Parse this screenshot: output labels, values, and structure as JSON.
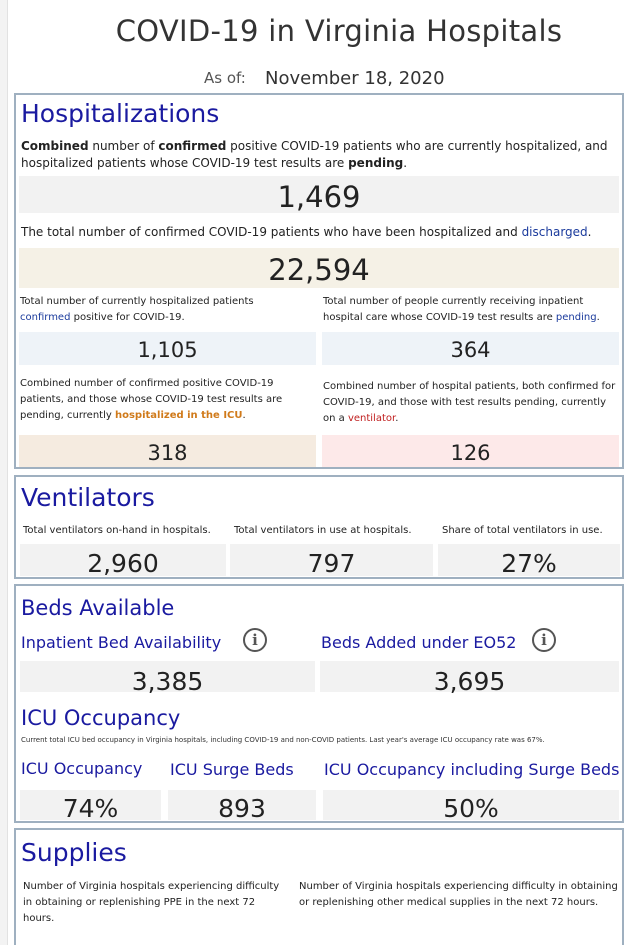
{
  "header": {
    "title": "COVID-19 in Virginia Hospitals",
    "as_of_label": "As of:",
    "as_of_date": "November 18, 2020"
  },
  "hospitalizations": {
    "title": "Hospitalizations",
    "total_desc": {
      "p1": "Combined",
      "p2": " number of ",
      "p3": "confirmed",
      "p4": " positive COVID-19 patients who are currently hospitalized, and hospitalized patients whose COVID-19 test results are ",
      "p5": "pending",
      "p6": "."
    },
    "total_value": "1,469",
    "discharged_desc": {
      "p1": "The total number of confirmed COVID-19 patients who have been hospitalized and ",
      "p2": "discharged",
      "p3": "."
    },
    "discharged_value": "22,594",
    "confirmed_desc": {
      "p1": "Total number of currently hospitalized patients ",
      "p2": "confirmed",
      "p3": " positive for COVID-19."
    },
    "confirmed_value": "1,105",
    "pending_desc": {
      "p1": "Total number of people currently receiving inpatient hospital care whose COVID-19 test results are ",
      "p2": "pending",
      "p3": "."
    },
    "pending_value": "364",
    "icu_desc": {
      "p1": "Combined number of confirmed positive COVID-19 patients, and those whose COVID-19 test results are pending, currently ",
      "p2": "hospitalized in the ICU",
      "p3": "."
    },
    "icu_value": "318",
    "vent_desc": {
      "p1": "Combined number of hospital patients, both confirmed for COVID-19, and those with test results pending, currently on a ",
      "p2": "ventilator",
      "p3": "."
    },
    "vent_value": "126"
  },
  "ventilators": {
    "title": "Ventilators",
    "onhand_label": "Total ventilators on-hand in hospitals.",
    "onhand_value": "2,960",
    "inuse_label": "Total ventilators in use at hospitals.",
    "inuse_value": "797",
    "share_label": "Share of total ventilators in use.",
    "share_value": "27%"
  },
  "beds": {
    "title": "Beds Available",
    "inpatient_label": "Inpatient Bed Availability",
    "inpatient_value": "3,385",
    "eo52_label": "Beds Added under EO52",
    "eo52_value": "3,695",
    "icu_title": "ICU Occupancy",
    "icu_note": "Current total ICU bed occupancy in Virginia hospitals, including COVID-19 and non-COVID patients. Last year's average ICU occupancy rate was 67%.",
    "icu_occ_label": "ICU Occupancy",
    "icu_occ_value": "74%",
    "surge_label": "ICU Surge Beds",
    "surge_value": "893",
    "occ_surge_label": "ICU Occupancy including Surge Beds",
    "occ_surge_value": "50%",
    "info_glyph": "i"
  },
  "supplies": {
    "title": "Supplies",
    "ppe_desc": "Number of Virginia hospitals experiencing difficulty in obtaining or replenishing PPE in the next 72 hours.",
    "other_desc": "Number of Virginia hospitals experiencing difficulty in obtaining or replenishing other medical supplies in the next 72 hours."
  },
  "icons": {
    "info": "info-circle-icon"
  }
}
